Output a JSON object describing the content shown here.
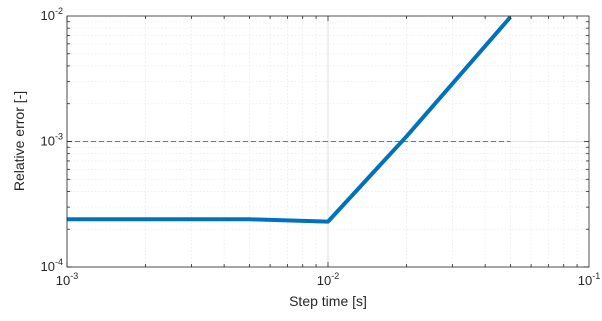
{
  "chart_data": {
    "type": "line",
    "title": "",
    "xlabel": "Step time [s]",
    "ylabel": "Relative error [-]",
    "xscale": "log",
    "yscale": "log",
    "xlim": [
      0.001,
      0.1
    ],
    "ylim": [
      0.0001,
      0.01
    ],
    "grid": true,
    "x_ticks": [
      {
        "base": "10",
        "exp": "-3"
      },
      {
        "base": "10",
        "exp": "-2"
      },
      {
        "base": "10",
        "exp": "-1"
      }
    ],
    "y_ticks": [
      {
        "base": "10",
        "exp": "-4"
      },
      {
        "base": "10",
        "exp": "-3"
      },
      {
        "base": "10",
        "exp": "-2"
      }
    ],
    "series": [
      {
        "x": [
          0.001,
          0.002,
          0.005,
          0.01,
          0.02,
          0.05
        ],
        "y": [
          0.00024,
          0.00024,
          0.00024,
          0.00023,
          0.0011,
          0.0098
        ],
        "color": "#0072bd",
        "style": "solid"
      }
    ],
    "reference_lines": [
      {
        "y": 0.001,
        "x_range": [
          0.001,
          0.05
        ],
        "color": "#d95319",
        "style": "dashed"
      }
    ]
  }
}
